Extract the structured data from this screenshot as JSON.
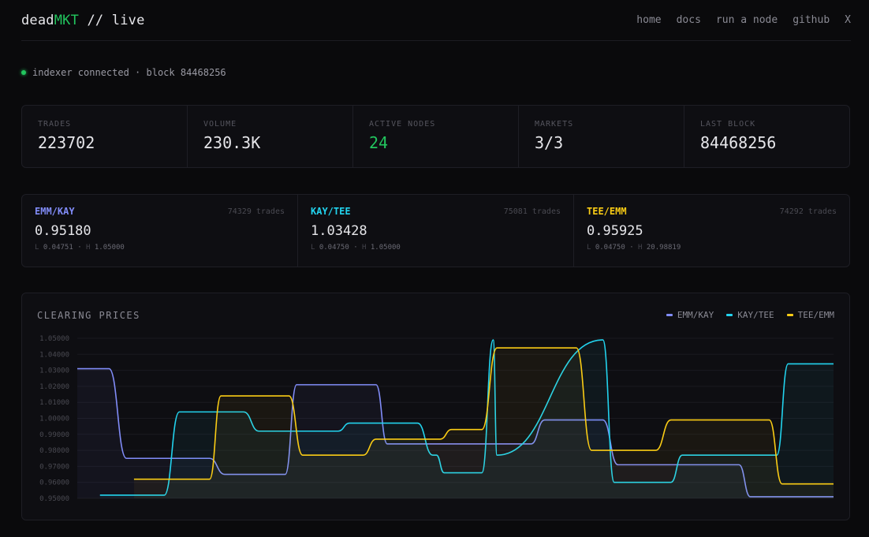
{
  "header": {
    "brand_prefix": "dead",
    "brand_highlight": "MKT",
    "brand_suffix": " // live",
    "nav": [
      "home",
      "docs",
      "run a node",
      "github",
      "X"
    ]
  },
  "status": {
    "text": "indexer connected · block 84468256"
  },
  "stats": [
    {
      "label": "TRADES",
      "value": "223702"
    },
    {
      "label": "VOLUME",
      "value": "230.3K"
    },
    {
      "label": "ACTIVE NODES",
      "value": "24"
    },
    {
      "label": "MARKETS",
      "value": "3/3"
    },
    {
      "label": "LAST BLOCK",
      "value": "84468256"
    }
  ],
  "markets": [
    {
      "pair": "EMM/KAY",
      "trades": "74329 trades",
      "price": "0.95180",
      "low_label": "L",
      "low": "0.04751",
      "high_label": "H",
      "high": "1.05000",
      "color": "#818cf8"
    },
    {
      "pair": "KAY/TEE",
      "trades": "75081 trades",
      "price": "1.03428",
      "low_label": "L",
      "low": "0.04750",
      "high_label": "H",
      "high": "1.05000",
      "color": "#22d3ee"
    },
    {
      "pair": "TEE/EMM",
      "trades": "74292 trades",
      "price": "0.95925",
      "low_label": "L",
      "low": "0.04750",
      "high_label": "H",
      "high": "20.98819",
      "color": "#facc15"
    }
  ],
  "chart_data": {
    "type": "line",
    "title": "CLEARING PRICES",
    "ylim": [
      0.95,
      1.05
    ],
    "yticks": [
      "1.05000",
      "1.04000",
      "1.03000",
      "1.02000",
      "1.01000",
      "1.00000",
      "0.99000",
      "0.98000",
      "0.97000",
      "0.96000",
      "0.95000"
    ],
    "x_range": [
      0,
      100
    ],
    "series": [
      {
        "name": "EMM/KAY",
        "color": "#818cf8",
        "points": [
          [
            0,
            1.031
          ],
          [
            4.2,
            1.031
          ],
          [
            6.5,
            0.975
          ],
          [
            17.5,
            0.975
          ],
          [
            19.5,
            0.965
          ],
          [
            27.5,
            0.965
          ],
          [
            29,
            1.021
          ],
          [
            39.5,
            1.021
          ],
          [
            41,
            0.984
          ],
          [
            46.8,
            0.984
          ],
          [
            48.5,
            0.984
          ],
          [
            60,
            0.984
          ],
          [
            61.8,
            0.999
          ],
          [
            69.5,
            0.999
          ],
          [
            71.5,
            0.971
          ],
          [
            87.5,
            0.971
          ],
          [
            89,
            0.951
          ],
          [
            100,
            0.951
          ]
        ]
      },
      {
        "name": "KAY/TEE",
        "color": "#22d3ee",
        "points": [
          [
            3,
            0.952
          ],
          [
            11.5,
            0.952
          ],
          [
            13.5,
            1.004
          ],
          [
            22,
            1.004
          ],
          [
            24,
            0.992
          ],
          [
            34.5,
            0.992
          ],
          [
            36,
            0.997
          ],
          [
            45,
            0.997
          ],
          [
            47,
            0.977
          ],
          [
            55.5,
            0.977
          ],
          [
            47.5,
            0.977
          ],
          [
            48.5,
            0.966
          ],
          [
            53.5,
            0.966
          ],
          [
            55,
            1.049
          ],
          [
            69.5,
            1.049
          ],
          [
            71,
            0.96
          ],
          [
            78.5,
            0.96
          ],
          [
            80,
            0.977
          ],
          [
            92.5,
            0.977
          ],
          [
            94,
            1.034
          ],
          [
            100,
            1.034
          ]
        ]
      },
      {
        "name": "TEE/EMM",
        "color": "#facc15",
        "points": [
          [
            7.5,
            0.962
          ],
          [
            17.5,
            0.962
          ],
          [
            19,
            1.014
          ],
          [
            28,
            1.014
          ],
          [
            29.8,
            0.977
          ],
          [
            37.8,
            0.977
          ],
          [
            39.5,
            0.987
          ],
          [
            48,
            0.987
          ],
          [
            49.5,
            0.993
          ],
          [
            53.5,
            0.993
          ],
          [
            55.5,
            1.044
          ],
          [
            66,
            1.044
          ],
          [
            68,
            0.98
          ],
          [
            76.5,
            0.98
          ],
          [
            78.5,
            0.999
          ],
          [
            91.5,
            0.999
          ],
          [
            93.2,
            0.959
          ],
          [
            100,
            0.959
          ]
        ]
      }
    ]
  }
}
